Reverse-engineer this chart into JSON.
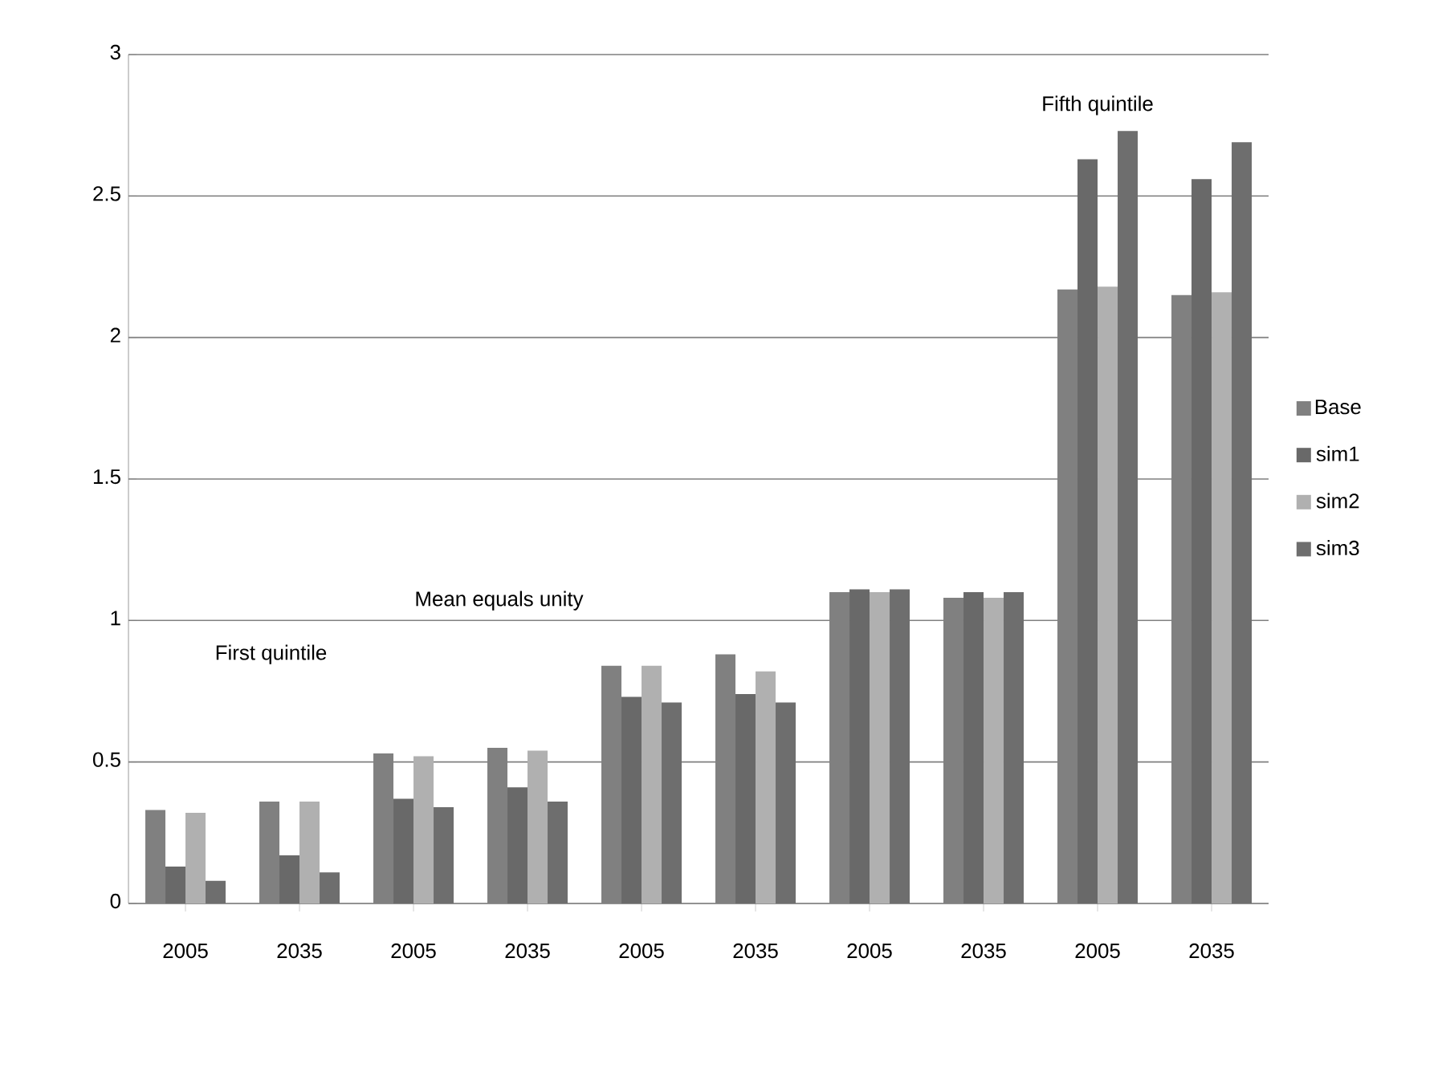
{
  "chart_data": {
    "type": "bar",
    "categories": [
      "2005",
      "2035",
      "2005",
      "2035",
      "2005",
      "2035",
      "2005",
      "2035",
      "2005",
      "2035"
    ],
    "series": [
      {
        "name": "Base",
        "color": "#808080",
        "values": [
          0.33,
          0.36,
          0.53,
          0.55,
          0.84,
          0.88,
          1.1,
          1.08,
          2.17,
          2.15
        ]
      },
      {
        "name": "sim1",
        "color": "#696969",
        "values": [
          0.13,
          0.17,
          0.37,
          0.41,
          0.73,
          0.74,
          1.11,
          1.1,
          2.63,
          2.56
        ]
      },
      {
        "name": "sim2",
        "color": "#b0b0b0",
        "values": [
          0.32,
          0.36,
          0.52,
          0.54,
          0.84,
          0.82,
          1.1,
          1.08,
          2.18,
          2.16
        ]
      },
      {
        "name": "sim3",
        "color": "#6e6e6e",
        "values": [
          0.08,
          0.11,
          0.34,
          0.36,
          0.71,
          0.71,
          1.11,
          1.1,
          2.73,
          2.69
        ]
      }
    ],
    "ylim": [
      0,
      3
    ],
    "yticks": [
      0,
      0.5,
      1,
      1.5,
      2,
      2.5,
      3
    ],
    "grid": "y",
    "legend": "right",
    "annotations": [
      "First quintile",
      "Mean equals unity",
      "Fifth quintile"
    ]
  }
}
